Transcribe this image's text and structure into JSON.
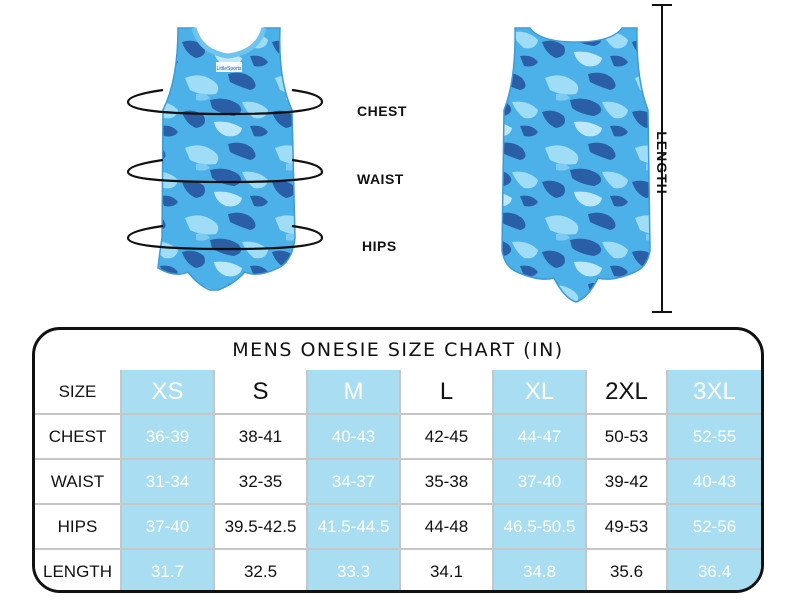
{
  "measure_labels": {
    "chest": "CHEST",
    "waist": "WAIST",
    "hips": "HIPS",
    "length": "LENGTH"
  },
  "garment_tag_text": "LittleSports",
  "colors": {
    "camo_light": "#9fdcf6",
    "camo_mid": "#4cb1e8",
    "camo_dark": "#2a5fa8",
    "column_blue": "#a9ddf2"
  },
  "chart": {
    "title": "MENS ONESIE SIZE CHART (IN)",
    "header_label": "SIZE",
    "sizes": [
      "XS",
      "S",
      "M",
      "L",
      "XL",
      "2XL",
      "3XL"
    ],
    "rows": [
      {
        "label": "CHEST",
        "values": [
          "36-39",
          "38-41",
          "40-43",
          "42-45",
          "44-47",
          "50-53",
          "52-55"
        ]
      },
      {
        "label": "WAIST",
        "values": [
          "31-34",
          "32-35",
          "34-37",
          "35-38",
          "37-40",
          "39-42",
          "40-43"
        ]
      },
      {
        "label": "HIPS",
        "values": [
          "37-40",
          "39.5-42.5",
          "41.5-44.5",
          "44-48",
          "46.5-50.5",
          "49-53",
          "52-56"
        ]
      },
      {
        "label": "LENGTH",
        "values": [
          "31.7",
          "32.5",
          "33.3",
          "34.1",
          "34.8",
          "35.6",
          "36.4"
        ]
      }
    ]
  }
}
